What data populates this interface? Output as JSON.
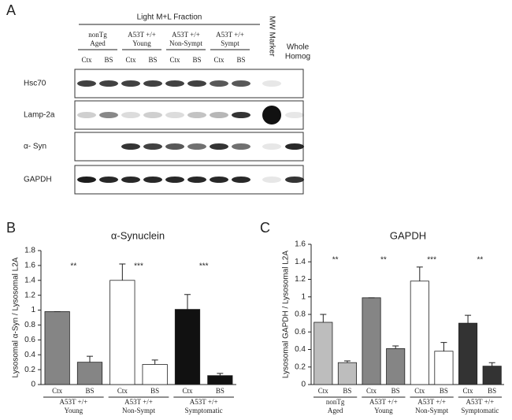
{
  "blot": {
    "panel": "A",
    "fraction": "Light M+L Fraction",
    "groups": [
      [
        "nonTg",
        "Aged"
      ],
      [
        "A53T +/+",
        "Young"
      ],
      [
        "A53T +/+",
        "Non-Sympt"
      ],
      [
        "A53T +/+",
        "Sympt"
      ]
    ],
    "lane_labels": [
      "Ctx",
      "BS",
      "Ctx",
      "BS",
      "Ctx",
      "BS",
      "Ctx",
      "BS"
    ],
    "marker": "MW Marker",
    "whole": [
      "Whole",
      "Homog"
    ],
    "rows": [
      "Hsc70",
      "Lamp-2a",
      "α- Syn",
      "GAPDH"
    ]
  },
  "chart_data": [
    {
      "type": "bar",
      "panel": "B",
      "title": "α-Synuclein",
      "y_label": "Lysosomal α-Syn / Lysosomal L2A",
      "categories": [
        "Ctx",
        "BS",
        "Ctx",
        "BS",
        "Ctx",
        "BS"
      ],
      "values": [
        0.98,
        0.3,
        1.4,
        0.27,
        1.01,
        0.12
      ],
      "errors": [
        0,
        0.08,
        0.22,
        0.06,
        0.2,
        0.03
      ],
      "colors": [
        "#858585",
        "#858585",
        "#ffffff",
        "#ffffff",
        "#111111",
        "#111111"
      ],
      "groups": [
        [
          "A53T +/+",
          "Young"
        ],
        [
          "A53T +/+",
          "Non-Sympt"
        ],
        [
          "A53T +/+",
          "Symptomatic"
        ]
      ],
      "annotations": [
        "**",
        "***",
        "***"
      ],
      "ylim": [
        0,
        1.8
      ],
      "yticks": [
        0,
        0.2,
        0.4,
        0.6,
        0.8,
        1,
        1.2,
        1.4,
        1.6,
        1.8
      ]
    },
    {
      "type": "bar",
      "panel": "C",
      "title": "GAPDH",
      "y_label": "Lysosomal GAPDH / Lysosomal L2A",
      "categories": [
        "Ctx",
        "BS",
        "Ctx",
        "BS",
        "Ctx",
        "BS",
        "Ctx",
        "BS"
      ],
      "values": [
        0.71,
        0.25,
        0.99,
        0.41,
        1.18,
        0.38,
        0.7,
        0.21
      ],
      "errors": [
        0.09,
        0.02,
        0,
        0.03,
        0.16,
        0.1,
        0.09,
        0.04
      ],
      "colors": [
        "#bdbdbd",
        "#bdbdbd",
        "#858585",
        "#858585",
        "#ffffff",
        "#ffffff",
        "#333333",
        "#333333"
      ],
      "groups": [
        [
          "nonTg",
          "Aged"
        ],
        [
          "A53T +/+",
          "Young"
        ],
        [
          "A53T +/+",
          "Non-Sympt"
        ],
        [
          "A53T +/+",
          "Symptomatic"
        ]
      ],
      "annotations": [
        "**",
        "**",
        "***",
        "**"
      ],
      "ylim": [
        0,
        1.6
      ],
      "yticks": [
        0,
        0.2,
        0.4,
        0.6,
        0.8,
        1,
        1.2,
        1.4,
        1.6
      ]
    }
  ]
}
